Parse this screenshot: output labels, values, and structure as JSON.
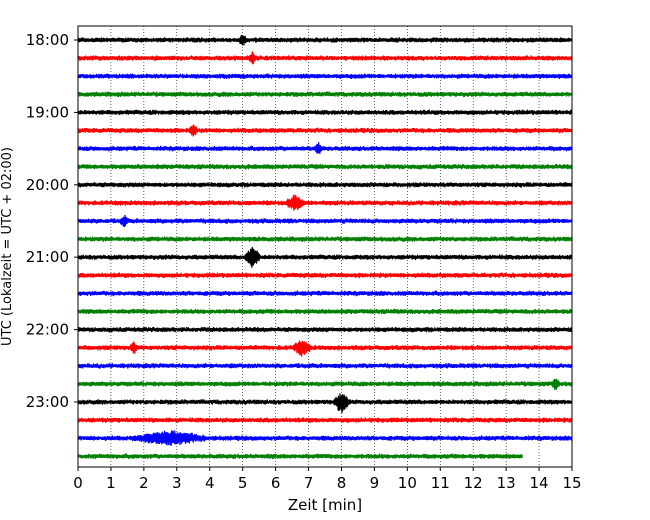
{
  "chart_data": {
    "type": "line",
    "chart_kind": "helicorder (seismogram drum plot)",
    "xlabel": "Zeit  [min]",
    "ylabel": "UTC (Lokalzeit = UTC + 02:00)",
    "xlim": [
      0,
      15
    ],
    "x_ticks": [
      "0",
      "1",
      "2",
      "3",
      "4",
      "5",
      "6",
      "7",
      "8",
      "9",
      "10",
      "11",
      "12",
      "13",
      "14",
      "15"
    ],
    "y_tick_labels": [
      "18:00",
      "19:00",
      "20:00",
      "21:00",
      "22:00",
      "23:00"
    ],
    "grid": "vertical dotted lines at each minute",
    "trace_color_cycle": [
      "#000000",
      "#ff0000",
      "#0000ff",
      "#008000"
    ],
    "traces": [
      {
        "start": "18:00",
        "end_min": 15,
        "events": [
          {
            "min": 5.0,
            "amp": "small"
          }
        ]
      },
      {
        "start": "18:15",
        "end_min": 15,
        "events": [
          {
            "min": 5.3,
            "amp": "small"
          }
        ]
      },
      {
        "start": "18:30",
        "end_min": 15,
        "events": []
      },
      {
        "start": "18:45",
        "end_min": 15,
        "events": []
      },
      {
        "start": "19:00",
        "end_min": 15,
        "events": []
      },
      {
        "start": "19:15",
        "end_min": 15,
        "events": [
          {
            "min": 3.5,
            "amp": "small"
          }
        ]
      },
      {
        "start": "19:30",
        "end_min": 15,
        "events": [
          {
            "min": 7.3,
            "amp": "small"
          }
        ]
      },
      {
        "start": "19:45",
        "end_min": 15,
        "events": []
      },
      {
        "start": "20:00",
        "end_min": 15,
        "events": []
      },
      {
        "start": "20:15",
        "end_min": 15,
        "events": [
          {
            "min": 6.6,
            "amp": "medium"
          }
        ]
      },
      {
        "start": "20:30",
        "end_min": 15,
        "events": [
          {
            "min": 1.4,
            "amp": "small"
          }
        ]
      },
      {
        "start": "20:45",
        "end_min": 15,
        "events": []
      },
      {
        "start": "21:00",
        "end_min": 15,
        "events": [
          {
            "min": 5.3,
            "amp": "large"
          }
        ]
      },
      {
        "start": "21:15",
        "end_min": 15,
        "events": []
      },
      {
        "start": "21:30",
        "end_min": 15,
        "events": []
      },
      {
        "start": "21:45",
        "end_min": 15,
        "events": []
      },
      {
        "start": "22:00",
        "end_min": 15,
        "events": []
      },
      {
        "start": "22:15",
        "end_min": 15,
        "events": [
          {
            "min": 6.8,
            "amp": "medium"
          },
          {
            "min": 1.7,
            "amp": "small"
          }
        ]
      },
      {
        "start": "22:30",
        "end_min": 15,
        "events": []
      },
      {
        "start": "22:45",
        "end_min": 15,
        "events": [
          {
            "min": 14.5,
            "amp": "small"
          }
        ]
      },
      {
        "start": "23:00",
        "end_min": 15,
        "events": [
          {
            "min": 8.0,
            "amp": "large"
          }
        ]
      },
      {
        "start": "23:15",
        "end_min": 15,
        "events": []
      },
      {
        "start": "23:30",
        "end_min": 15,
        "events": [
          {
            "min": 2.8,
            "amp": "burst"
          }
        ]
      },
      {
        "start": "23:45",
        "end_min": 13.5,
        "events": []
      }
    ]
  }
}
